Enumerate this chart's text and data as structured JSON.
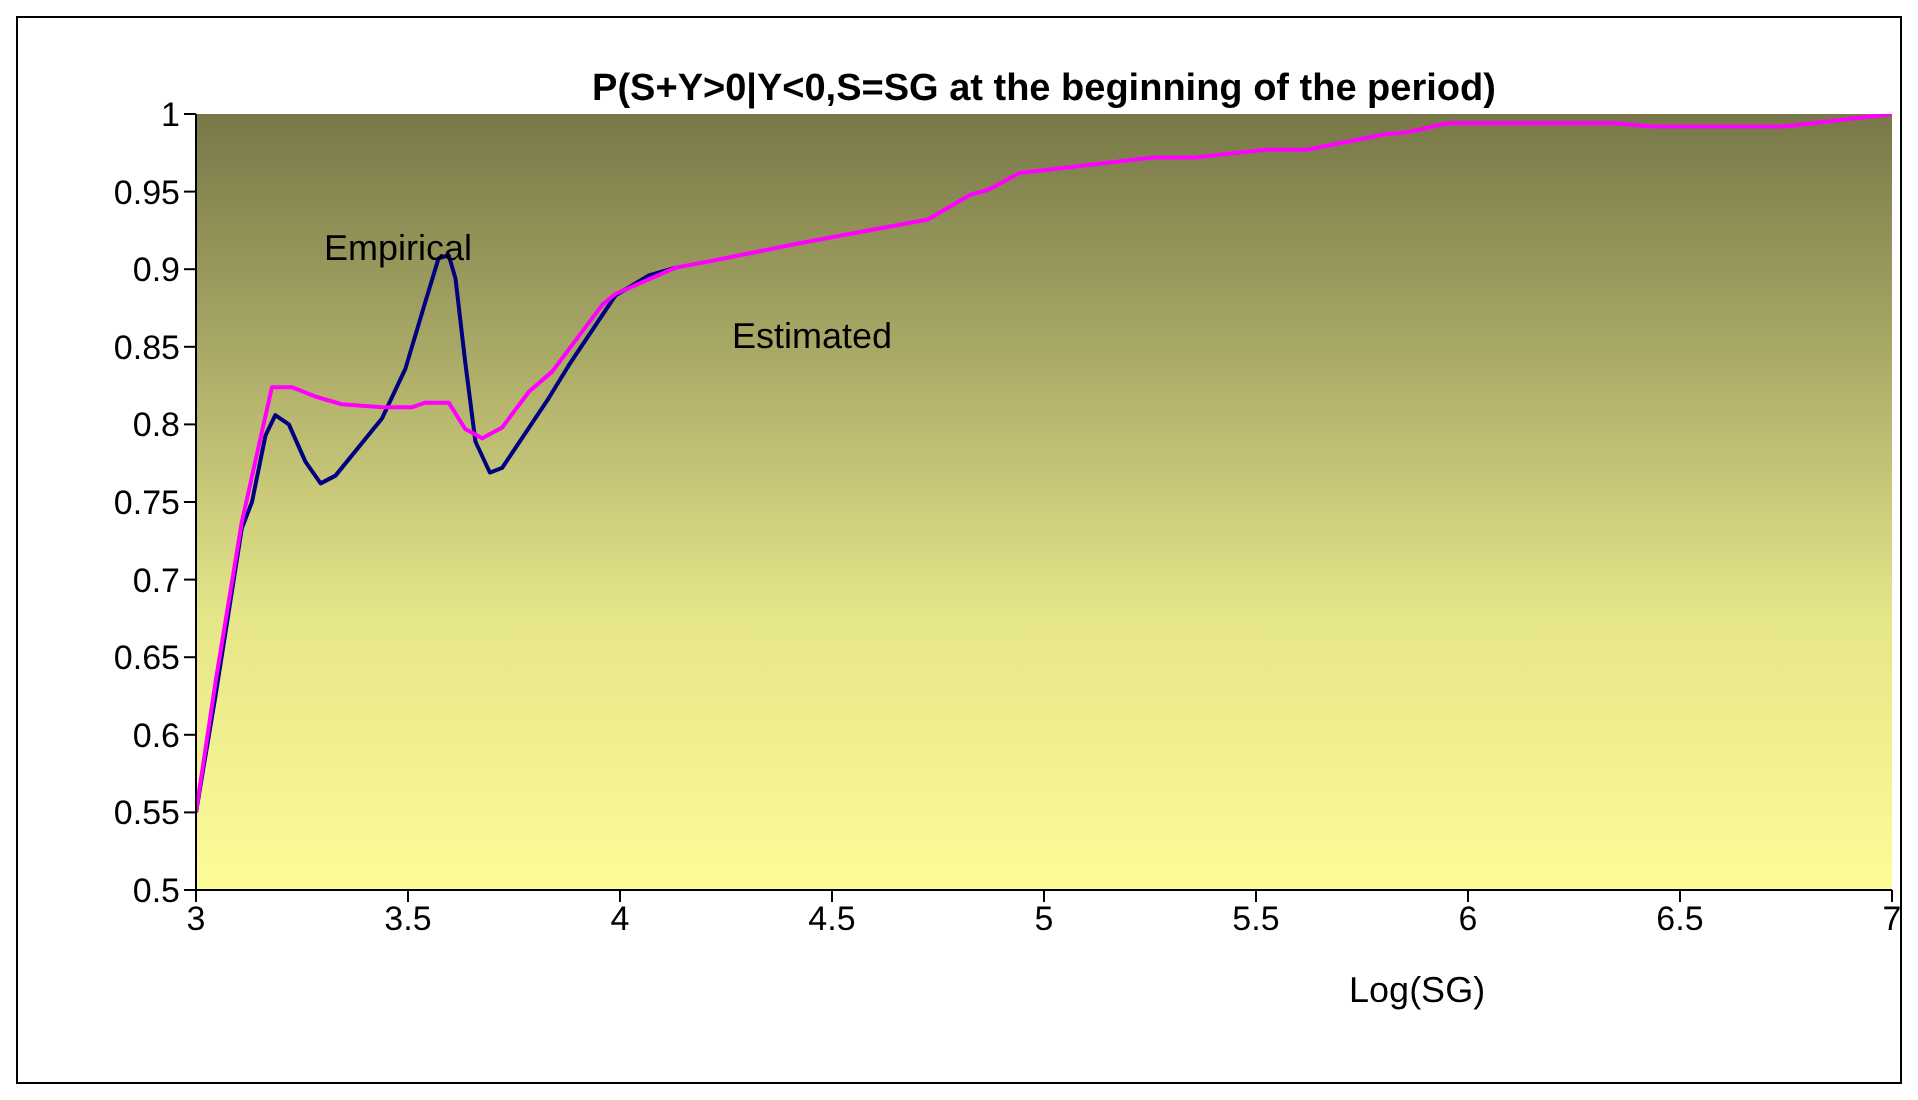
{
  "chart_data": {
    "type": "line",
    "title": "P(S+Y>0|Y<0,S=SG at the beginning of the period)",
    "xlabel": "Log(SG)",
    "xlim": [
      3,
      7
    ],
    "xticks": [
      3,
      3.5,
      4,
      4.5,
      5,
      5.5,
      6,
      6.5,
      7
    ],
    "ylim": [
      0.5,
      1
    ],
    "yticks": [
      0.5,
      0.55,
      0.6,
      0.65,
      0.7,
      0.75,
      0.8,
      0.85,
      0.9,
      0.95,
      1
    ],
    "grid": false,
    "legend": false,
    "marker": "none",
    "line_style": "solid",
    "series": [
      {
        "name": "Empirical",
        "color": "#000080",
        "x": [
          3,
          3.046,
          3.108,
          3.132,
          3.164,
          3.187,
          3.219,
          3.258,
          3.294,
          3.329,
          3.439,
          3.494,
          3.541,
          3.572,
          3.596,
          3.612,
          3.635,
          3.659,
          3.693,
          3.722,
          3.832,
          3.879,
          3.989,
          4.068,
          4.131
        ],
        "values": [
          0.55,
          0.625,
          0.733,
          0.75,
          0.793,
          0.806,
          0.8,
          0.776,
          0.762,
          0.767,
          0.804,
          0.836,
          0.879,
          0.907,
          0.909,
          0.894,
          0.84,
          0.789,
          0.769,
          0.772,
          0.817,
          0.838,
          0.883,
          0.896,
          0.901
        ]
      },
      {
        "name": "Estimated",
        "color": "#ff00ff",
        "x": [
          3,
          3.046,
          3.108,
          3.179,
          3.226,
          3.281,
          3.344,
          3.439,
          3.509,
          3.541,
          3.596,
          3.635,
          3.675,
          3.722,
          3.785,
          3.84,
          3.958,
          3.989,
          4.131,
          4.209,
          4.429,
          4.726,
          4.826,
          4.868,
          4.942,
          5.257,
          5.356,
          5.522,
          5.621,
          5.803,
          5.853,
          5.952,
          6.349,
          6.432,
          6.746,
          6.813,
          7
        ],
        "values": [
          0.55,
          0.634,
          0.737,
          0.824,
          0.824,
          0.818,
          0.813,
          0.811,
          0.811,
          0.814,
          0.814,
          0.797,
          0.791,
          0.798,
          0.821,
          0.834,
          0.877,
          0.884,
          0.901,
          0.905,
          0.917,
          0.932,
          0.948,
          0.951,
          0.962,
          0.972,
          0.972,
          0.977,
          0.977,
          0.987,
          0.988,
          0.994,
          0.994,
          0.992,
          0.992,
          0.994,
          1
        ]
      }
    ]
  }
}
